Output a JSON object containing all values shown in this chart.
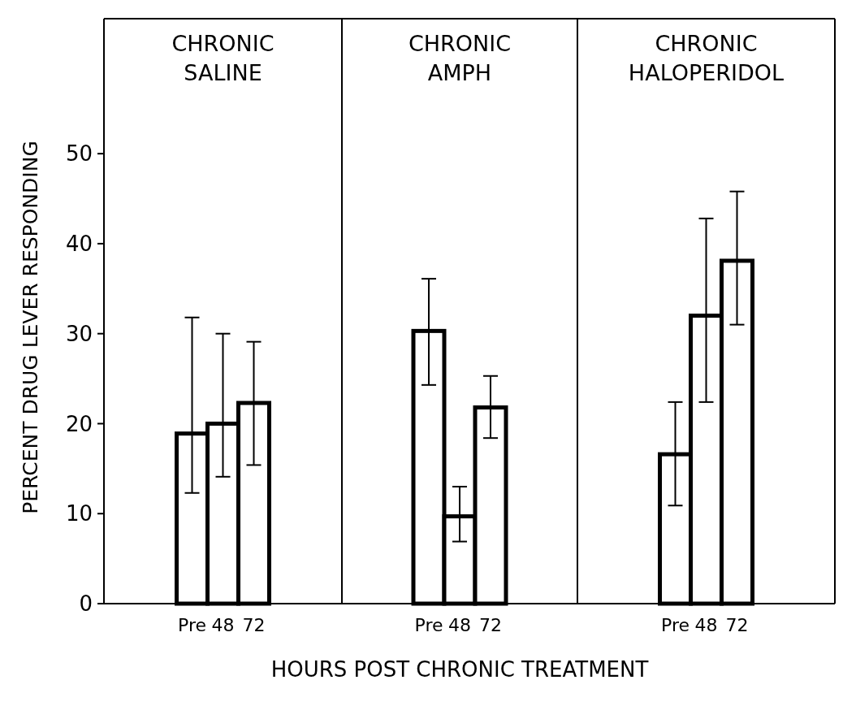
{
  "chart_data": [
    {
      "type": "bar",
      "title": "CHRONIC\nSALINE",
      "ylabel": "PERCENT DRUG LEVER RESPONDING",
      "categories": [
        "Pre",
        "48",
        "72"
      ],
      "values": [
        18.9,
        20.0,
        22.3
      ],
      "errors": [
        [
          12.3,
          31.8
        ],
        [
          14.1,
          30.0
        ],
        [
          15.4,
          29.1
        ]
      ],
      "color": "#ffffff",
      "ylim": [
        0,
        65
      ],
      "yticks": [
        0,
        10,
        20,
        30,
        40,
        50
      ],
      "grid": false
    },
    {
      "type": "bar",
      "title": "CHRONIC\nAMPH",
      "xlabel": "HOURS POST CHRONIC TREATMENT",
      "categories": [
        "Pre",
        "48",
        "72"
      ],
      "values": [
        30.3,
        9.7,
        21.8
      ],
      "errors": [
        [
          24.3,
          36.1
        ],
        [
          6.9,
          13.0
        ],
        [
          18.4,
          25.3
        ]
      ],
      "color": "#ffffff",
      "ylim": [
        0,
        65
      ],
      "yticks": [
        0,
        10,
        20,
        30,
        40,
        50
      ],
      "tick_labels": "x",
      "grid": false
    },
    {
      "type": "bar",
      "title": "CHRONIC\nHALOPERIDOL",
      "categories": [
        "Pre",
        "48",
        "72"
      ],
      "values": [
        16.6,
        32.0,
        38.1
      ],
      "errors": [
        [
          10.9,
          22.4
        ],
        [
          22.4,
          42.8
        ],
        [
          31.0,
          45.8
        ]
      ],
      "color": "#ffffff",
      "ylim": [
        0,
        65
      ],
      "yticks": [
        0,
        10,
        20,
        30,
        40,
        50
      ],
      "tick_labels": "x",
      "grid": false
    }
  ]
}
